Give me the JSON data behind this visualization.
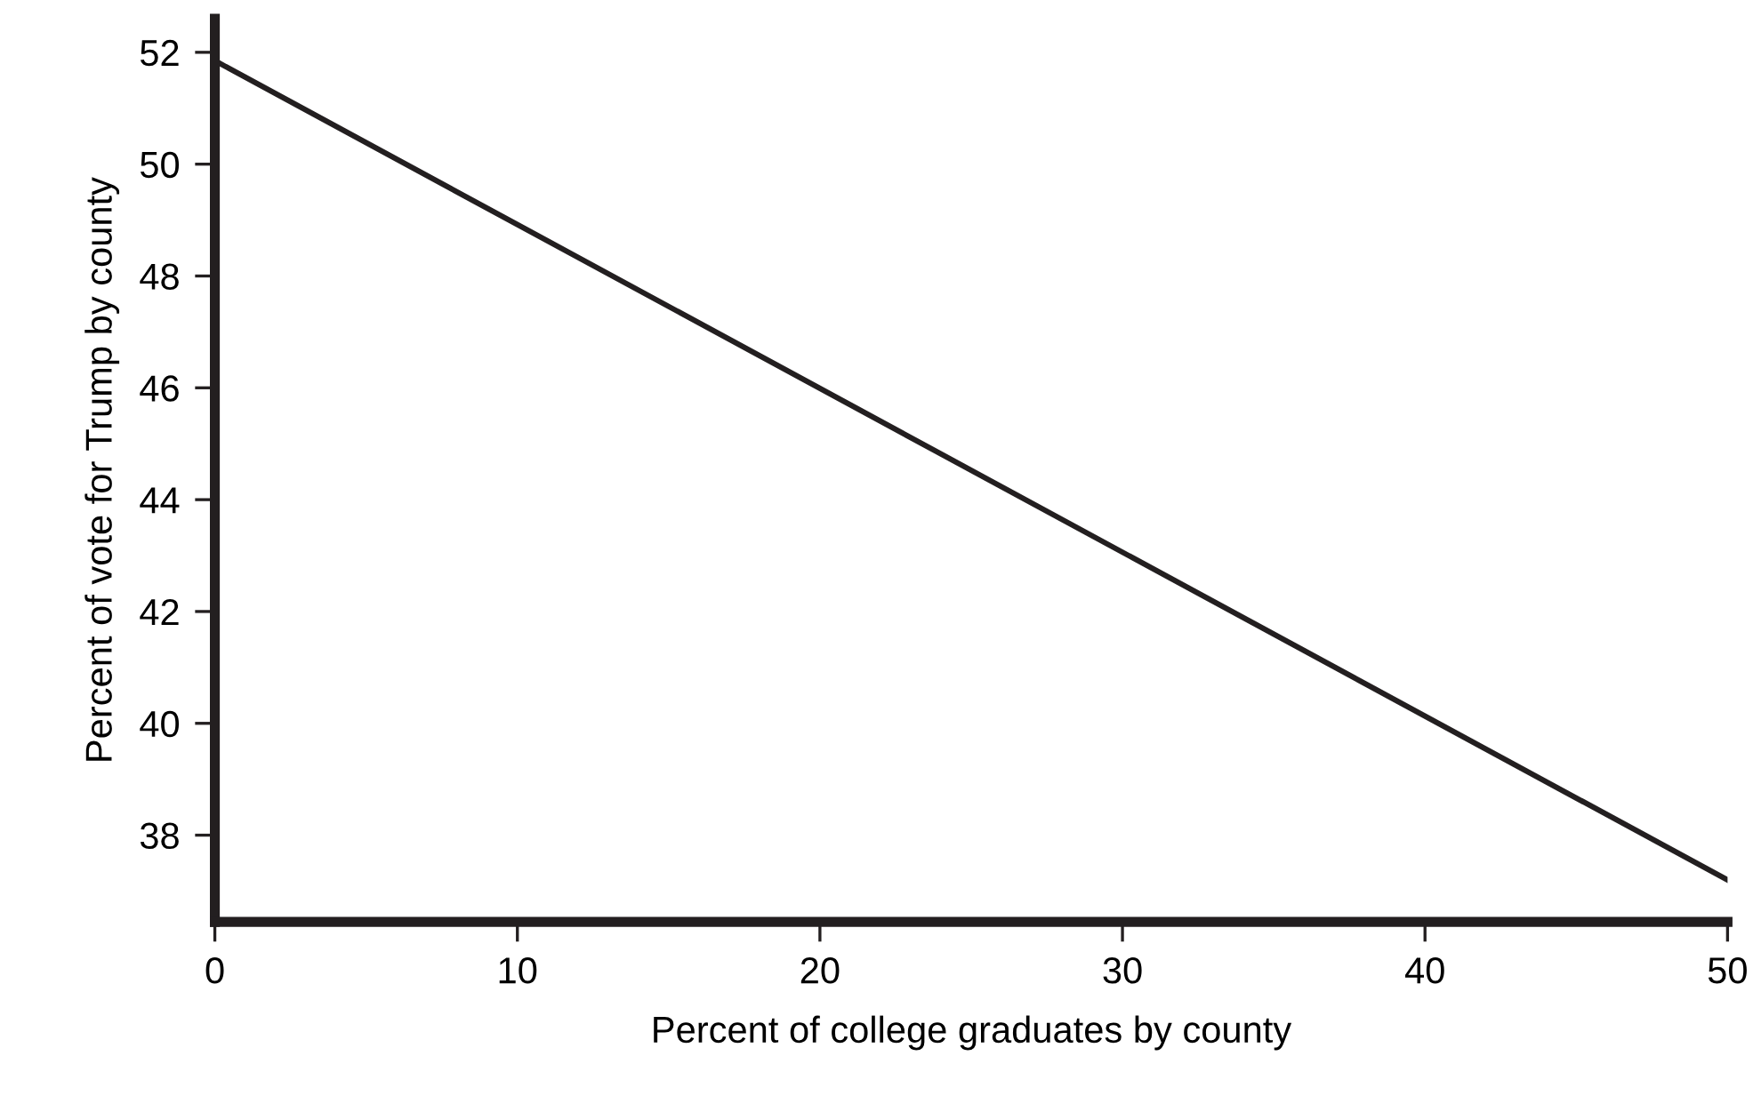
{
  "chart_data": {
    "type": "line",
    "xlabel": "Percent of college graduates by county",
    "ylabel": "Percent of vote for Trump by county",
    "x": [
      0,
      50
    ],
    "series": [
      {
        "color": "#231f20",
        "values": [
          51.85,
          37.2
        ]
      }
    ],
    "xlim": [
      0,
      50
    ],
    "xticks": [
      0,
      10,
      20,
      30,
      40,
      50
    ],
    "ylim": [
      36.45,
      52.6
    ],
    "yticks": [
      38,
      40,
      42,
      44,
      46,
      48,
      50,
      52
    ],
    "grid": false,
    "legend": false,
    "marker": "none",
    "line_style": "solid"
  }
}
